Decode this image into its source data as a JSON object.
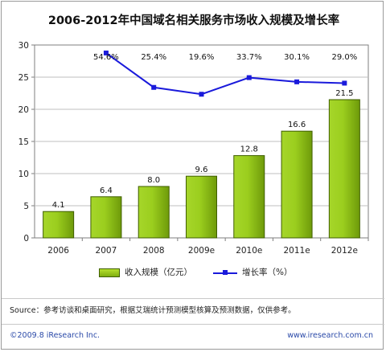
{
  "chart_data": {
    "title": "2006-2012年中国域名相关服务市场收入规模及增长率",
    "type": "bar",
    "categories": [
      "2006",
      "2007",
      "2008",
      "2009e",
      "2010e",
      "2011e",
      "2012e"
    ],
    "series": [
      {
        "name": "收入规模（亿元）",
        "type": "bar",
        "values": [
          4.1,
          6.4,
          8.0,
          9.6,
          12.8,
          16.6,
          21.5
        ],
        "labels": [
          "4.1",
          "6.4",
          "8.0",
          "9.6",
          "12.8",
          "16.6",
          "21.5"
        ]
      },
      {
        "name": "增长率（%）",
        "type": "line",
        "values": [
          null,
          54.6,
          25.4,
          19.6,
          33.7,
          30.1,
          29.0
        ],
        "labels": [
          "",
          "54.6%",
          "25.4%",
          "19.6%",
          "33.7%",
          "30.1%",
          "29.0%"
        ]
      }
    ],
    "yticks": [
      "0",
      "5",
      "10",
      "15",
      "20",
      "25",
      "30"
    ],
    "ylim": [
      0,
      30
    ],
    "grid": true,
    "legend_position": "bottom",
    "colors": {
      "bar": "#8cc21a",
      "bar_edge": "#3f5e00",
      "line": "#1a1adb"
    }
  },
  "footer": {
    "source": "Source：参考访谈和桌面研究，根据艾瑞统计预测模型核算及预测数据，仅供参考。",
    "copyright": "©2009.8 iResearch Inc.",
    "website": "www.iresearch.com.cn"
  }
}
